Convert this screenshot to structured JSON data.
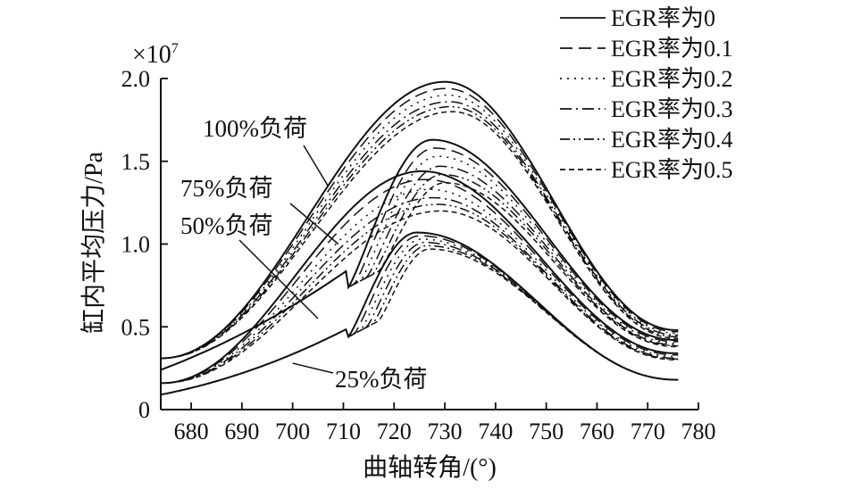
{
  "chart_data": {
    "type": "line",
    "xlabel": "曲轴转角/(°)",
    "ylabel": "缸内平均压力/Pa",
    "y_multiplier": "×10",
    "y_multiplier_exp": "7",
    "xlim": [
      674,
      780
    ],
    "ylim": [
      0,
      2.0
    ],
    "x_ticks": [
      680,
      690,
      700,
      710,
      720,
      730,
      740,
      750,
      760,
      770,
      780
    ],
    "y_ticks": [
      0,
      0.5,
      1.0,
      1.5,
      2.0
    ],
    "y_tick_labels": [
      "0",
      "0.5",
      "1.0",
      "1.5",
      "2.0"
    ],
    "grid": false,
    "legend_position": "top-right",
    "legend": [
      {
        "label": "EGR率为0",
        "dash": "solid"
      },
      {
        "label": "EGR率为0.1",
        "dash": "dash"
      },
      {
        "label": "EGR率为0.2",
        "dash": "dot"
      },
      {
        "label": "EGR率为0.3",
        "dash": "dashdot"
      },
      {
        "label": "EGR率为0.4",
        "dash": "dashdotdot"
      },
      {
        "label": "EGR率为0.5",
        "dash": "shortdash"
      }
    ],
    "egr_rates": [
      0,
      0.1,
      0.2,
      0.3,
      0.4,
      0.5
    ],
    "load_groups": [
      {
        "load": "100%负荷",
        "start_value": 0.31,
        "start_slope": 0.0115,
        "end_value": [
          0.48,
          0.47,
          0.46,
          0.45,
          0.44,
          0.43
        ],
        "peaks": [
          {
            "x": 730.0,
            "y": 1.98
          },
          {
            "x": 730.3,
            "y": 1.94
          },
          {
            "x": 730.6,
            "y": 1.9
          },
          {
            "x": 730.9,
            "y": 1.86
          },
          {
            "x": 731.2,
            "y": 1.83
          },
          {
            "x": 731.5,
            "y": 1.8
          }
        ]
      },
      {
        "load": "75%负荷",
        "start_value": 0.24,
        "start_slope": 0.0115,
        "knee": {
          "x": 711,
          "y": 0.74
        },
        "end_value": [
          0.42,
          0.41,
          0.4,
          0.39,
          0.385,
          0.38
        ],
        "peaks": [
          {
            "x": 727.5,
            "y": 1.63
          },
          {
            "x": 728.0,
            "y": 1.58
          },
          {
            "x": 728.5,
            "y": 1.53
          },
          {
            "x": 729.0,
            "y": 1.47
          },
          {
            "x": 729.5,
            "y": 1.42
          },
          {
            "x": 730.0,
            "y": 1.37
          }
        ]
      },
      {
        "load": "50%负荷",
        "start_value": 0.16,
        "start_slope": 0.0115,
        "end_value": [
          0.34,
          0.33,
          0.32,
          0.31,
          0.305,
          0.3
        ],
        "peaks": [
          {
            "x": 725.5,
            "y": 1.44
          },
          {
            "x": 726.2,
            "y": 1.39
          },
          {
            "x": 727.0,
            "y": 1.33
          },
          {
            "x": 727.7,
            "y": 1.28
          },
          {
            "x": 728.5,
            "y": 1.24
          },
          {
            "x": 729.2,
            "y": 1.2
          }
        ]
      },
      {
        "load": "25%负荷",
        "start_value": 0.09,
        "start_slope": 0.006,
        "knee": {
          "x": 711,
          "y": 0.44
        },
        "end_value": [
          0.18,
          0.18,
          0.18,
          0.18,
          0.18,
          0.18
        ],
        "peaks": [
          {
            "x": 724.5,
            "y": 1.07
          },
          {
            "x": 725.0,
            "y": 1.05
          },
          {
            "x": 725.5,
            "y": 1.03
          },
          {
            "x": 726.0,
            "y": 1.01
          },
          {
            "x": 726.5,
            "y": 0.99
          },
          {
            "x": 727.0,
            "y": 0.97
          }
        ]
      }
    ],
    "annotations": [
      {
        "text": "100%负荷",
        "target": {
          "x": 707,
          "y": 1.35
        }
      },
      {
        "text": "75%负荷",
        "target": {
          "x": 709,
          "y": 1.0
        }
      },
      {
        "text": "50%负荷",
        "target": {
          "x": 705,
          "y": 0.55
        }
      },
      {
        "text": "25%负荷",
        "target": {
          "x": 700,
          "y": 0.28
        }
      }
    ]
  }
}
